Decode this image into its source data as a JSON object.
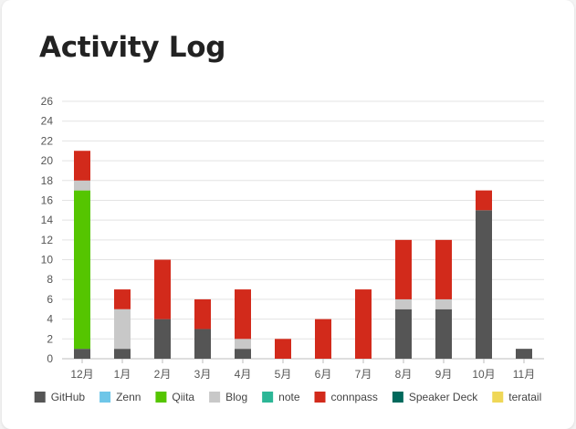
{
  "page": {
    "title": "Activity Log"
  },
  "chart_data": {
    "type": "bar",
    "stacked": true,
    "title": "",
    "xlabel": "",
    "ylabel": "",
    "ylim": [
      0,
      26
    ],
    "yticks": [
      0,
      2,
      4,
      6,
      8,
      10,
      12,
      14,
      16,
      18,
      20,
      22,
      24,
      26
    ],
    "grid": true,
    "legend_position": "bottom",
    "categories": [
      "12月",
      "1月",
      "2月",
      "3月",
      "4月",
      "5月",
      "6月",
      "7月",
      "8月",
      "9月",
      "10月",
      "11月"
    ],
    "series": [
      {
        "name": "GitHub",
        "color": "#555555",
        "values": [
          1,
          1,
          4,
          3,
          1,
          0,
          0,
          0,
          5,
          5,
          15,
          1
        ]
      },
      {
        "name": "Zenn",
        "color": "#6ec6e8",
        "values": [
          0,
          0,
          0,
          0,
          0,
          0,
          0,
          0,
          0,
          0,
          0,
          0
        ]
      },
      {
        "name": "Qiita",
        "color": "#55c500",
        "values": [
          16,
          0,
          0,
          0,
          0,
          0,
          0,
          0,
          0,
          0,
          0,
          0
        ]
      },
      {
        "name": "Blog",
        "color": "#c8c8c8",
        "values": [
          1,
          4,
          0,
          0,
          1,
          0,
          0,
          0,
          1,
          1,
          0,
          0
        ]
      },
      {
        "name": "note",
        "color": "#2cb696",
        "values": [
          0,
          0,
          0,
          0,
          0,
          0,
          0,
          0,
          0,
          0,
          0,
          0
        ]
      },
      {
        "name": "connpass",
        "color": "#d22a1b",
        "values": [
          3,
          2,
          6,
          3,
          5,
          2,
          4,
          7,
          6,
          6,
          2,
          0
        ]
      },
      {
        "name": "Speaker Deck",
        "color": "#00695c",
        "values": [
          0,
          0,
          0,
          0,
          0,
          0,
          0,
          0,
          0,
          0,
          0,
          0
        ]
      },
      {
        "name": "teratail",
        "color": "#efd757",
        "values": [
          0,
          0,
          0,
          0,
          0,
          0,
          0,
          0,
          0,
          0,
          0,
          0
        ]
      }
    ]
  }
}
